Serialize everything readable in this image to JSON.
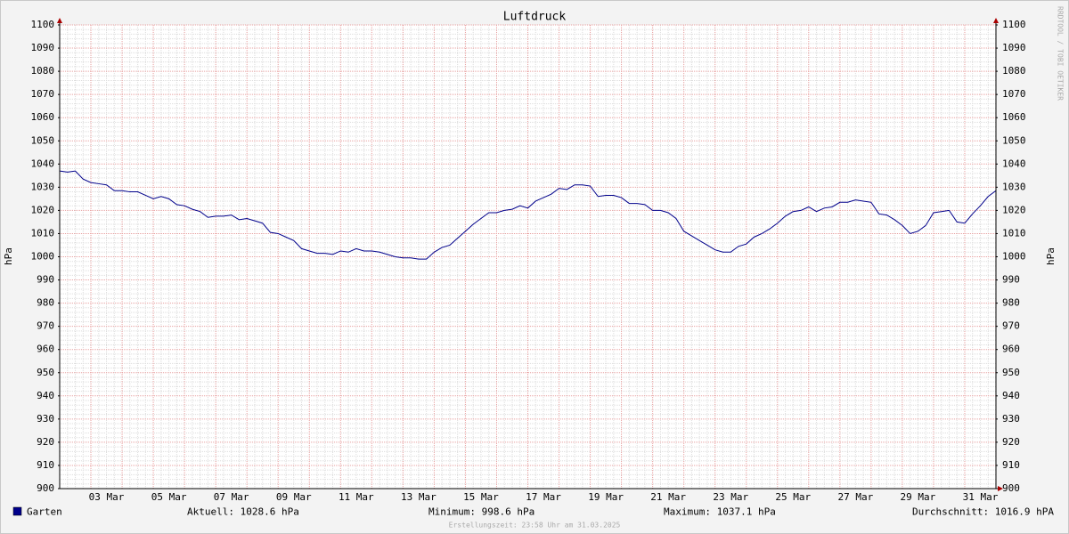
{
  "chart_data": {
    "type": "line",
    "title": "Luftdruck",
    "ylabel": "hPa",
    "y2label": "hPa",
    "watermark": "RRDTOOL / TOBI OETIKER",
    "x": [
      2,
      2.25,
      2.5,
      2.75,
      3,
      3.25,
      3.5,
      3.75,
      4,
      4.25,
      4.5,
      4.75,
      5,
      5.25,
      5.5,
      5.75,
      6,
      6.25,
      6.5,
      6.75,
      7,
      7.25,
      7.5,
      7.75,
      8,
      8.25,
      8.5,
      8.75,
      9,
      9.25,
      9.5,
      9.75,
      10,
      10.25,
      10.5,
      10.75,
      11,
      11.25,
      11.5,
      11.75,
      12,
      12.25,
      12.5,
      12.75,
      13,
      13.25,
      13.5,
      13.75,
      14,
      14.25,
      14.5,
      14.75,
      15,
      15.25,
      15.5,
      15.75,
      16,
      16.25,
      16.5,
      16.75,
      17,
      17.25,
      17.5,
      17.75,
      18,
      18.25,
      18.5,
      18.75,
      19,
      19.25,
      19.5,
      19.75,
      20,
      20.25,
      20.5,
      20.75,
      21,
      21.25,
      21.5,
      21.75,
      22,
      22.25,
      22.5,
      22.75,
      23,
      23.25,
      23.5,
      23.75,
      24,
      24.25,
      24.5,
      24.75,
      25,
      25.25,
      25.5,
      25.75,
      26,
      26.25,
      26.5,
      26.75,
      27,
      27.25,
      27.5,
      27.75,
      28,
      28.25,
      28.5,
      28.75,
      29,
      29.25,
      29.5,
      29.75,
      30,
      30.25,
      30.5,
      30.75,
      31,
      31.25,
      31.5,
      31.75,
      32
    ],
    "series": [
      {
        "name": "Garten",
        "color": "#00008b",
        "values": [
          1037,
          1036.5,
          1037,
          1033.5,
          1032,
          1031.5,
          1031,
          1028.5,
          1028.5,
          1028,
          1028,
          1026.5,
          1025,
          1026,
          1025,
          1022.5,
          1022,
          1020.5,
          1019.5,
          1017,
          1017.5,
          1017.5,
          1018,
          1016,
          1016.5,
          1015.5,
          1014.5,
          1010.5,
          1010,
          1008.5,
          1007,
          1003.5,
          1002.5,
          1001.5,
          1001.5,
          1001,
          1002.5,
          1002,
          1003.5,
          1002.5,
          1002.5,
          1002,
          1001,
          1000,
          999.5,
          999.5,
          999,
          999,
          1002,
          1004,
          1005,
          1008,
          1011,
          1014,
          1016.5,
          1019,
          1019,
          1020,
          1020.5,
          1022,
          1021,
          1024,
          1025.5,
          1027,
          1029.5,
          1029,
          1031,
          1031,
          1030.5,
          1026,
          1026.5,
          1026.5,
          1025.5,
          1023,
          1023,
          1022.5,
          1020,
          1020,
          1019,
          1016.5,
          1011,
          1009,
          1007,
          1005,
          1003,
          1002,
          1002,
          1004.5,
          1005.5,
          1008.5,
          1010,
          1012,
          1014.5,
          1017.5,
          1019.5,
          1020,
          1021.5,
          1019.5,
          1021,
          1021.5,
          1023.5,
          1023.5,
          1024.5,
          1024,
          1023.5,
          1018.5,
          1018,
          1016,
          1013.5,
          1010,
          1011,
          1013.5,
          1019,
          1019.5,
          1020,
          1015,
          1014.5,
          1018.5,
          1022,
          1026,
          1028.5
        ]
      }
    ],
    "xlim": [
      2,
      32
    ],
    "xticks": [
      {
        "value": 3.5,
        "label": "03 Mar"
      },
      {
        "value": 5.5,
        "label": "05 Mar"
      },
      {
        "value": 7.5,
        "label": "07 Mar"
      },
      {
        "value": 9.5,
        "label": "09 Mar"
      },
      {
        "value": 11.5,
        "label": "11 Mar"
      },
      {
        "value": 13.5,
        "label": "13 Mar"
      },
      {
        "value": 15.5,
        "label": "15 Mar"
      },
      {
        "value": 17.5,
        "label": "17 Mar"
      },
      {
        "value": 19.5,
        "label": "19 Mar"
      },
      {
        "value": 21.5,
        "label": "21 Mar"
      },
      {
        "value": 23.5,
        "label": "23 Mar"
      },
      {
        "value": 25.5,
        "label": "25 Mar"
      },
      {
        "value": 27.5,
        "label": "27 Mar"
      },
      {
        "value": 29.5,
        "label": "29 Mar"
      },
      {
        "value": 31.5,
        "label": "31 Mar"
      }
    ],
    "ylim": [
      900,
      1100
    ],
    "yticks": [
      900,
      910,
      920,
      930,
      940,
      950,
      960,
      970,
      980,
      990,
      1000,
      1010,
      1020,
      1030,
      1040,
      1050,
      1060,
      1070,
      1080,
      1090,
      1100
    ],
    "grid": true,
    "stats": [
      "Aktuell: 1028.6 hPa",
      "Minimum: 998.6 hPa",
      "Maximum: 1037.1 hPa",
      "Durchschnitt: 1016.9 hPA"
    ],
    "footer": "Erstellungszeit: 23:58 Uhr am 31.03.2025"
  }
}
